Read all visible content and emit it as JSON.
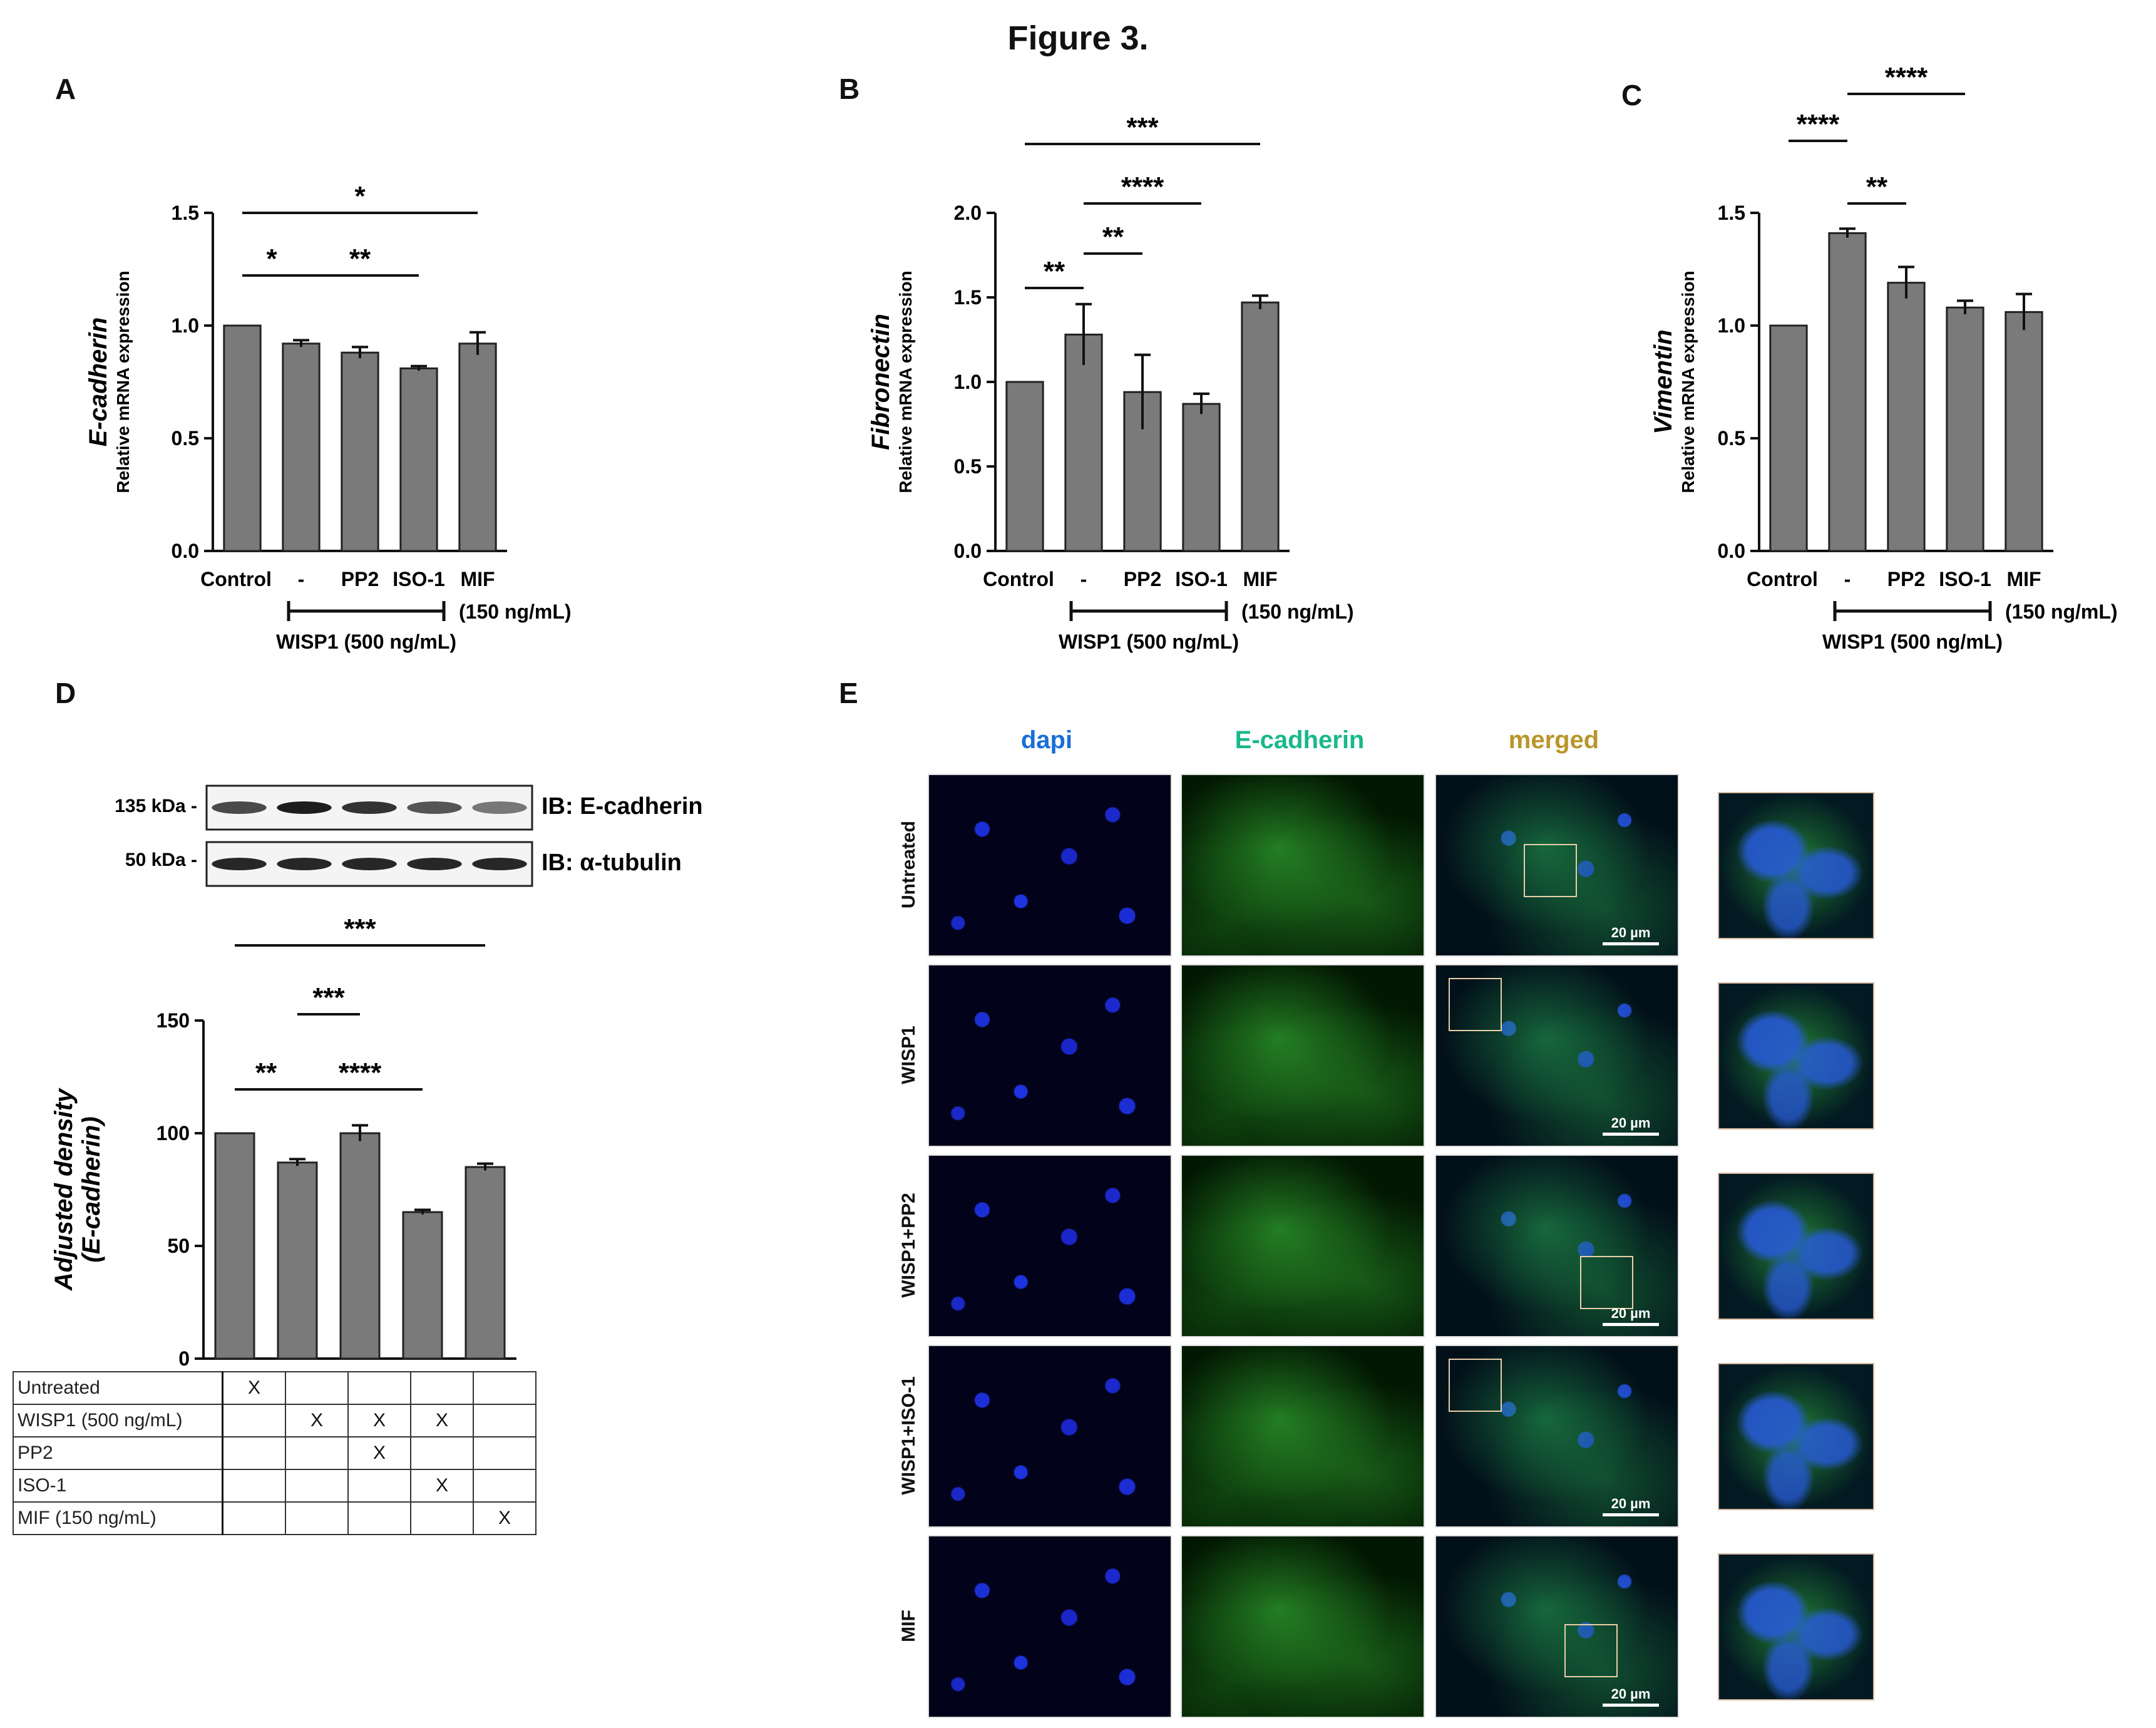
{
  "figure_title": "Figure 3.",
  "panels": {
    "A": "A",
    "B": "B",
    "C": "C",
    "D": "D",
    "E": "E"
  },
  "group_labels": {
    "wisp1": "WISP1 (500 ng/mL)",
    "mif_dose": "(150 ng/mL)"
  },
  "chart_data": [
    {
      "id": "A",
      "type": "bar",
      "categories": [
        "Control",
        "-",
        "PP2",
        "ISO-1",
        "MIF"
      ],
      "values": [
        1.0,
        0.92,
        0.88,
        0.81,
        0.92
      ],
      "errors": [
        0,
        0.015,
        0.025,
        0.01,
        0.05
      ],
      "ylabel_italic": "E-cadherin",
      "ylabel": "Relative mRNA expression",
      "ylim": [
        0,
        1.5
      ],
      "yticks": [
        "0.0",
        "0.5",
        "1.0",
        "1.5"
      ],
      "significance": [
        {
          "from": 0,
          "to": 4,
          "label": "*"
        },
        {
          "from": 0,
          "to": 1,
          "label": "*"
        },
        {
          "from": 1,
          "to": 3,
          "label": "**"
        }
      ]
    },
    {
      "id": "B",
      "type": "bar",
      "categories": [
        "Control",
        "-",
        "PP2",
        "ISO-1",
        "MIF"
      ],
      "values": [
        1.0,
        1.28,
        0.94,
        0.87,
        1.47
      ],
      "errors": [
        0,
        0.18,
        0.22,
        0.06,
        0.04
      ],
      "ylabel_italic": "Fibronectin",
      "ylabel": "Relative mRNA expression",
      "ylim": [
        0,
        2.0
      ],
      "yticks": [
        "0.0",
        "0.5",
        "1.0",
        "1.5",
        "2.0"
      ],
      "significance": [
        {
          "from": 0,
          "to": 4,
          "label": "***"
        },
        {
          "from": 1,
          "to": 3,
          "label": "****"
        },
        {
          "from": 1,
          "to": 2,
          "label": "**"
        },
        {
          "from": 0,
          "to": 1,
          "label": "**"
        }
      ]
    },
    {
      "id": "C",
      "type": "bar",
      "categories": [
        "Control",
        "-",
        "PP2",
        "ISO-1",
        "MIF"
      ],
      "values": [
        1.0,
        1.41,
        1.19,
        1.08,
        1.06
      ],
      "errors": [
        0,
        0.02,
        0.07,
        0.03,
        0.08
      ],
      "ylabel_italic": "Vimentin",
      "ylabel": "Relative mRNA expression",
      "ylim": [
        0,
        1.5
      ],
      "yticks": [
        "0.0",
        "0.5",
        "1.0",
        "1.5"
      ],
      "significance": [
        {
          "from": 1,
          "to": 3,
          "label": "****"
        },
        {
          "from": 0,
          "to": 1,
          "label": "****"
        },
        {
          "from": 1,
          "to": 2,
          "label": "**"
        }
      ]
    },
    {
      "id": "D",
      "type": "bar",
      "categories": [
        "Untreated",
        "WISP1",
        "WISP1+PP2",
        "WISP1+ISO-1",
        "MIF"
      ],
      "values": [
        100,
        87,
        100,
        65,
        85
      ],
      "errors": [
        0,
        1.5,
        3.5,
        1,
        1.5
      ],
      "ylabel": "Adjusted density",
      "ylabel2": "(E-cadherin)",
      "ylim": [
        0,
        150
      ],
      "yticks": [
        "0",
        "50",
        "100",
        "150"
      ],
      "significance": [
        {
          "from": 0,
          "to": 4,
          "label": "***"
        },
        {
          "from": 1,
          "to": 2,
          "label": "***"
        },
        {
          "from": 0,
          "to": 1,
          "label": "**"
        },
        {
          "from": 1,
          "to": 3,
          "label": "****"
        }
      ]
    }
  ],
  "blot": {
    "rows": [
      {
        "kda": "135 kDa -",
        "ib": "IB: E-cadherin"
      },
      {
        "kda": "50 kDa -",
        "ib": "IB: α-tubulin"
      }
    ]
  },
  "treatment_table": {
    "rows": [
      {
        "name": "Untreated",
        "marks": [
          "X",
          "",
          "",
          "",
          ""
        ]
      },
      {
        "name": "WISP1 (500 ng/mL)",
        "marks": [
          "",
          "X",
          "X",
          "X",
          ""
        ]
      },
      {
        "name": "PP2",
        "marks": [
          "",
          "",
          "X",
          "",
          ""
        ]
      },
      {
        "name": "ISO-1",
        "marks": [
          "",
          "",
          "",
          "X",
          ""
        ]
      },
      {
        "name": "MIF (150 ng/mL)",
        "marks": [
          "",
          "",
          "",
          "",
          "X"
        ]
      }
    ]
  },
  "microscopy": {
    "columns": [
      "dapi",
      "E-cadherin",
      "merged"
    ],
    "column_colors": [
      "#1a6fd6",
      "#19b88a",
      "#b8962a"
    ],
    "rows": [
      "Untreated",
      "WISP1",
      "WISP1+PP2",
      "WISP1+ISO-1",
      "MIF"
    ],
    "scale_bar": "20 µm"
  },
  "colors": {
    "bar": "#7a7a7a",
    "inset_outline": "#e8c8a8"
  }
}
